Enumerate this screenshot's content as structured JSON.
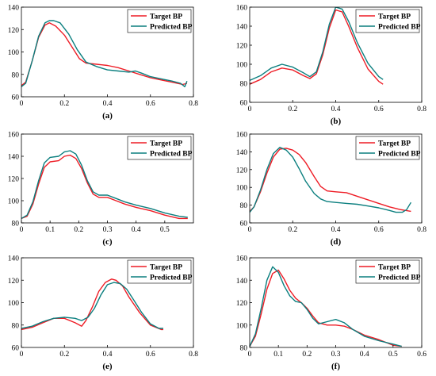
{
  "colors": {
    "target": "#ee1c25",
    "predicted": "#0b7f7f",
    "axis": "#000000"
  },
  "chart_data": [
    {
      "type": "line",
      "caption": "(a)",
      "xlim": [
        0,
        0.8
      ],
      "ylim": [
        60,
        140
      ],
      "xticks": [
        "0",
        "0.2",
        "0.4",
        "0.6",
        "0.8"
      ],
      "yticks": [
        "60",
        "80",
        "100",
        "120",
        "140"
      ],
      "legend_position": "top-right",
      "grid": false,
      "series": [
        {
          "name": "Target BP",
          "color": "#ee1c25",
          "x": [
            0,
            0.02,
            0.05,
            0.08,
            0.11,
            0.13,
            0.16,
            0.2,
            0.24,
            0.27,
            0.3,
            0.35,
            0.4,
            0.45,
            0.5,
            0.55,
            0.6,
            0.65,
            0.7,
            0.75,
            0.77
          ],
          "y": [
            70,
            73,
            92,
            113,
            124,
            126,
            123,
            115,
            103,
            94,
            90,
            89,
            88,
            86,
            83,
            80,
            77,
            75,
            73,
            71,
            72
          ]
        },
        {
          "name": "Predicted BP",
          "color": "#0b7f7f",
          "x": [
            0,
            0.02,
            0.05,
            0.08,
            0.11,
            0.13,
            0.15,
            0.18,
            0.22,
            0.26,
            0.3,
            0.35,
            0.4,
            0.45,
            0.5,
            0.53,
            0.56,
            0.6,
            0.65,
            0.7,
            0.74,
            0.76,
            0.77
          ],
          "y": [
            69,
            72,
            92,
            114,
            126,
            128,
            128,
            126,
            116,
            102,
            91,
            87,
            84,
            83,
            82,
            83,
            81,
            78,
            76,
            74,
            72,
            69,
            74
          ]
        }
      ]
    },
    {
      "type": "line",
      "caption": "(b)",
      "xlim": [
        0,
        0.8
      ],
      "ylim": [
        60,
        160
      ],
      "xticks": [
        "0",
        "0.2",
        "0.4",
        "0.6",
        "0.8"
      ],
      "yticks": [
        "60",
        "80",
        "100",
        "120",
        "140",
        "160"
      ],
      "legend_position": "top-right",
      "grid": false,
      "series": [
        {
          "name": "Target BP",
          "color": "#ee1c25",
          "x": [
            0,
            0.05,
            0.1,
            0.15,
            0.2,
            0.25,
            0.28,
            0.31,
            0.34,
            0.37,
            0.4,
            0.43,
            0.46,
            0.5,
            0.55,
            0.6,
            0.62
          ],
          "y": [
            79,
            84,
            92,
            96,
            94,
            88,
            85,
            90,
            110,
            138,
            157,
            155,
            140,
            118,
            95,
            82,
            79
          ]
        },
        {
          "name": "Predicted BP",
          "color": "#0b7f7f",
          "x": [
            0,
            0.05,
            0.1,
            0.15,
            0.2,
            0.25,
            0.28,
            0.31,
            0.34,
            0.37,
            0.4,
            0.43,
            0.46,
            0.5,
            0.55,
            0.6,
            0.62
          ],
          "y": [
            83,
            88,
            96,
            100,
            97,
            91,
            87,
            92,
            113,
            142,
            160,
            158,
            145,
            123,
            101,
            87,
            84
          ]
        }
      ]
    },
    {
      "type": "line",
      "caption": "(c)",
      "xlim": [
        0,
        0.6
      ],
      "ylim": [
        80,
        160
      ],
      "xticks": [
        "0",
        "0.1",
        "0.2",
        "0.3",
        "0.4",
        "0.5"
      ],
      "yticks": [
        "80",
        "100",
        "120",
        "140",
        "160"
      ],
      "legend_position": "top-right",
      "grid": false,
      "series": [
        {
          "name": "Target BP",
          "color": "#ee1c25",
          "x": [
            0,
            0.02,
            0.04,
            0.06,
            0.08,
            0.1,
            0.13,
            0.15,
            0.17,
            0.19,
            0.21,
            0.23,
            0.25,
            0.27,
            0.3,
            0.33,
            0.36,
            0.4,
            0.45,
            0.5,
            0.55,
            0.58
          ],
          "y": [
            84,
            86,
            97,
            115,
            130,
            135,
            136,
            140,
            141,
            138,
            129,
            116,
            106,
            103,
            103,
            100,
            97,
            94,
            91,
            87,
            84,
            84
          ]
        },
        {
          "name": "Predicted BP",
          "color": "#0b7f7f",
          "x": [
            0,
            0.02,
            0.04,
            0.06,
            0.08,
            0.1,
            0.13,
            0.15,
            0.17,
            0.19,
            0.21,
            0.23,
            0.25,
            0.27,
            0.3,
            0.33,
            0.36,
            0.4,
            0.45,
            0.5,
            0.55,
            0.58
          ],
          "y": [
            84,
            87,
            99,
            118,
            134,
            139,
            140,
            144,
            145,
            142,
            132,
            118,
            108,
            105,
            105,
            102,
            99,
            96,
            93,
            89,
            86,
            85
          ]
        }
      ]
    },
    {
      "type": "line",
      "caption": "(d)",
      "xlim": [
        0,
        0.8
      ],
      "ylim": [
        60,
        160
      ],
      "xticks": [
        "0",
        "0.2",
        "0.4",
        "0.6",
        "0.8"
      ],
      "yticks": [
        "60",
        "80",
        "100",
        "120",
        "140",
        "160"
      ],
      "legend_position": "top-right",
      "grid": false,
      "series": [
        {
          "name": "Target BP",
          "color": "#ee1c25",
          "x": [
            0,
            0.02,
            0.05,
            0.08,
            0.11,
            0.14,
            0.17,
            0.2,
            0.23,
            0.26,
            0.3,
            0.33,
            0.36,
            0.4,
            0.45,
            0.5,
            0.55,
            0.6,
            0.65,
            0.7,
            0.75
          ],
          "y": [
            73,
            78,
            95,
            116,
            134,
            143,
            144,
            142,
            137,
            128,
            112,
            101,
            96,
            95,
            94,
            90,
            86,
            82,
            78,
            75,
            73
          ]
        },
        {
          "name": "Predicted BP",
          "color": "#0b7f7f",
          "x": [
            0,
            0.02,
            0.05,
            0.08,
            0.11,
            0.14,
            0.17,
            0.2,
            0.23,
            0.26,
            0.3,
            0.33,
            0.36,
            0.4,
            0.45,
            0.5,
            0.55,
            0.6,
            0.65,
            0.68,
            0.71,
            0.73,
            0.75
          ],
          "y": [
            72,
            78,
            97,
            120,
            138,
            145,
            142,
            134,
            121,
            107,
            93,
            87,
            84,
            83,
            82,
            81,
            79,
            77,
            74,
            72,
            72,
            75,
            83
          ]
        }
      ]
    },
    {
      "type": "line",
      "caption": "(e)",
      "xlim": [
        0,
        0.8
      ],
      "ylim": [
        60,
        140
      ],
      "xticks": [
        "0",
        "0.2",
        "0.4",
        "0.6",
        "0.8"
      ],
      "yticks": [
        "60",
        "80",
        "100",
        "120",
        "140"
      ],
      "legend_position": "top-right",
      "grid": false,
      "series": [
        {
          "name": "Target BP",
          "color": "#ee1c25",
          "x": [
            0,
            0.05,
            0.1,
            0.15,
            0.2,
            0.25,
            0.28,
            0.3,
            0.33,
            0.36,
            0.39,
            0.42,
            0.44,
            0.47,
            0.5,
            0.55,
            0.6,
            0.65,
            0.66
          ],
          "y": [
            76,
            78,
            82,
            86,
            86,
            82,
            79,
            84,
            96,
            110,
            118,
            121,
            120,
            115,
            105,
            91,
            80,
            76,
            76
          ]
        },
        {
          "name": "Predicted BP",
          "color": "#0b7f7f",
          "x": [
            0,
            0.05,
            0.1,
            0.15,
            0.2,
            0.25,
            0.28,
            0.31,
            0.34,
            0.37,
            0.4,
            0.43,
            0.46,
            0.49,
            0.52,
            0.56,
            0.6,
            0.64,
            0.66
          ],
          "y": [
            77,
            79,
            83,
            86,
            87,
            86,
            84,
            87,
            95,
            107,
            116,
            118,
            117,
            112,
            103,
            91,
            81,
            77,
            77
          ]
        }
      ]
    },
    {
      "type": "line",
      "caption": "(f)",
      "xlim": [
        0,
        0.6
      ],
      "ylim": [
        80,
        160
      ],
      "xticks": [
        "0",
        "0.1",
        "0.2",
        "0.3",
        "0.4",
        "0.5",
        "0.6"
      ],
      "yticks": [
        "80",
        "100",
        "120",
        "140",
        "160"
      ],
      "legend_position": "top-right",
      "grid": false,
      "series": [
        {
          "name": "Target BP",
          "color": "#ee1c25",
          "x": [
            0,
            0.02,
            0.04,
            0.06,
            0.08,
            0.1,
            0.12,
            0.14,
            0.16,
            0.18,
            0.2,
            0.22,
            0.24,
            0.27,
            0.3,
            0.33,
            0.36,
            0.4,
            0.45,
            0.5,
            0.53
          ],
          "y": [
            81,
            90,
            110,
            132,
            146,
            149,
            141,
            131,
            124,
            120,
            115,
            108,
            102,
            100,
            100,
            99,
            96,
            91,
            87,
            82,
            81
          ]
        },
        {
          "name": "Predicted BP",
          "color": "#0b7f7f",
          "x": [
            0,
            0.02,
            0.04,
            0.06,
            0.08,
            0.1,
            0.12,
            0.14,
            0.16,
            0.18,
            0.2,
            0.22,
            0.24,
            0.27,
            0.3,
            0.33,
            0.36,
            0.4,
            0.45,
            0.5,
            0.53
          ],
          "y": [
            81,
            92,
            115,
            140,
            152,
            147,
            135,
            126,
            121,
            120,
            114,
            106,
            101,
            103,
            105,
            102,
            96,
            90,
            86,
            83,
            81
          ]
        }
      ]
    }
  ]
}
